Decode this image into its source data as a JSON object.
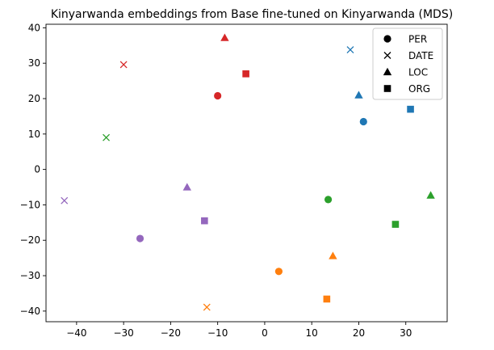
{
  "chart_data": {
    "type": "scatter",
    "title": "Kinyarwanda embeddings from Base fine-tuned on Kinyarwanda (MDS)",
    "xlabel": "",
    "ylabel": "",
    "xlim": [
      -46.5,
      38.8
    ],
    "ylim": [
      -43,
      41
    ],
    "xticks": [
      -40,
      -30,
      -20,
      -10,
      0,
      10,
      20,
      30
    ],
    "yticks": [
      -40,
      -30,
      -20,
      -10,
      0,
      10,
      20,
      30,
      40
    ],
    "grid": false,
    "legend_position": "top-right",
    "legend": [
      {
        "label": "PER",
        "marker": "circle"
      },
      {
        "label": "DATE",
        "marker": "x"
      },
      {
        "label": "LOC",
        "marker": "triangle"
      },
      {
        "label": "ORG",
        "marker": "square"
      }
    ],
    "colors": {
      "blue": "#1f77b4",
      "orange": "#ff7f0e",
      "green": "#2ca02c",
      "red": "#d62728",
      "purple": "#9467bd"
    },
    "points": [
      {
        "group": "blue",
        "marker": "circle",
        "x": 21.0,
        "y": 13.5
      },
      {
        "group": "blue",
        "marker": "x",
        "x": 18.2,
        "y": 33.8
      },
      {
        "group": "blue",
        "marker": "triangle",
        "x": 20.0,
        "y": 21.0
      },
      {
        "group": "blue",
        "marker": "square",
        "x": 31.0,
        "y": 17.0
      },
      {
        "group": "red",
        "marker": "circle",
        "x": -10.0,
        "y": 20.8
      },
      {
        "group": "red",
        "marker": "x",
        "x": -30.0,
        "y": 29.6
      },
      {
        "group": "red",
        "marker": "triangle",
        "x": -8.5,
        "y": 37.2
      },
      {
        "group": "red",
        "marker": "square",
        "x": -4.0,
        "y": 27.0
      },
      {
        "group": "green",
        "marker": "circle",
        "x": 13.5,
        "y": -8.5
      },
      {
        "group": "green",
        "marker": "x",
        "x": -33.7,
        "y": 9.0
      },
      {
        "group": "green",
        "marker": "triangle",
        "x": 35.3,
        "y": -7.3
      },
      {
        "group": "green",
        "marker": "square",
        "x": 27.8,
        "y": -15.5
      },
      {
        "group": "purple",
        "marker": "circle",
        "x": -26.5,
        "y": -19.5
      },
      {
        "group": "purple",
        "marker": "x",
        "x": -42.6,
        "y": -8.8
      },
      {
        "group": "purple",
        "marker": "triangle",
        "x": -16.5,
        "y": -5.0
      },
      {
        "group": "purple",
        "marker": "square",
        "x": -12.8,
        "y": -14.5
      },
      {
        "group": "orange",
        "marker": "circle",
        "x": 3.0,
        "y": -28.8
      },
      {
        "group": "orange",
        "marker": "x",
        "x": -12.3,
        "y": -38.9
      },
      {
        "group": "orange",
        "marker": "triangle",
        "x": 14.5,
        "y": -24.4
      },
      {
        "group": "orange",
        "marker": "square",
        "x": 13.2,
        "y": -36.6
      }
    ]
  }
}
